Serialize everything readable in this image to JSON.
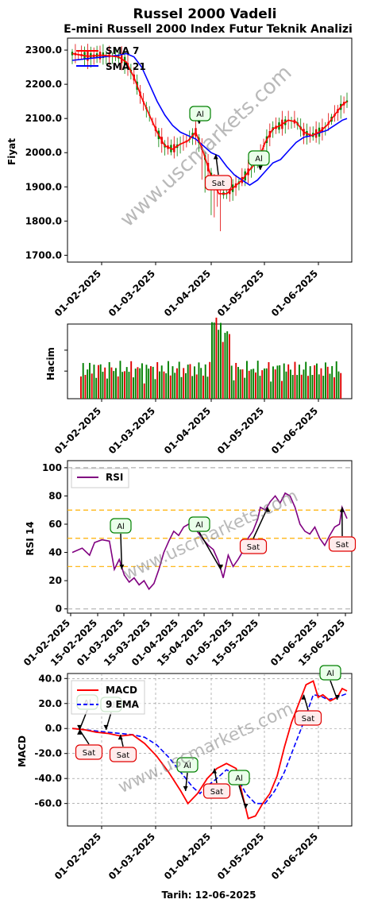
{
  "page": {
    "title": "Russel 2000 Vadeli",
    "subtitle": "E-mini Russell 2000 Index Futur Teknik Analizi",
    "watermark": "www.uscmarkets.com",
    "footer": "Tarih: 12-06-2025"
  },
  "colors": {
    "up": "#008000",
    "down": "#e00000",
    "sma7": "#ff0000",
    "sma21": "#0000ff",
    "rsi": "#800080",
    "macd": "#ff0000",
    "ema": "#0000ff",
    "buy_box": "#008000",
    "sell_box": "#e00000",
    "ref_line": "#ffb000",
    "grid": "#b0b0b0"
  },
  "chart_data": [
    {
      "id": "price",
      "type": "candlestick",
      "ylabel": "Fiyat",
      "ylim": [
        1680,
        2335
      ],
      "yticks": [
        "1700.0",
        "1800.0",
        "1900.0",
        "2000.0",
        "2100.0",
        "2200.0",
        "2300.0"
      ],
      "xticks": [
        "01-02-2025",
        "01-03-2025",
        "01-04-2025",
        "01-05-2025",
        "01-06-2025"
      ],
      "legend": [
        "SMA 7",
        "SMA 21"
      ],
      "series": [
        {
          "name": "SMA 7",
          "values": [
            [
              0,
              2290
            ],
            [
              10,
              2282
            ],
            [
              20,
              2285
            ],
            [
              30,
              2280
            ],
            [
              35,
              2265
            ],
            [
              40,
              2220
            ],
            [
              45,
              2160
            ],
            [
              50,
              2110
            ],
            [
              55,
              2060
            ],
            [
              60,
              2020
            ],
            [
              65,
              2010
            ],
            [
              70,
              2025
            ],
            [
              75,
              2035
            ],
            [
              80,
              2060
            ],
            [
              85,
              2000
            ],
            [
              90,
              1930
            ],
            [
              95,
              1880
            ],
            [
              100,
              1880
            ],
            [
              105,
              1900
            ],
            [
              110,
              1920
            ],
            [
              115,
              1950
            ],
            [
              120,
              1975
            ],
            [
              125,
              2030
            ],
            [
              130,
              2070
            ],
            [
              135,
              2080
            ],
            [
              140,
              2095
            ],
            [
              145,
              2090
            ],
            [
              150,
              2060
            ],
            [
              155,
              2050
            ],
            [
              160,
              2060
            ],
            [
              165,
              2080
            ],
            [
              170,
              2110
            ],
            [
              175,
              2140
            ],
            [
              178,
              2150
            ]
          ]
        },
        {
          "name": "SMA 21",
          "values": [
            [
              0,
              2270
            ],
            [
              10,
              2275
            ],
            [
              20,
              2280
            ],
            [
              30,
              2285
            ],
            [
              35,
              2290
            ],
            [
              40,
              2280
            ],
            [
              45,
              2250
            ],
            [
              50,
              2200
            ],
            [
              55,
              2150
            ],
            [
              60,
              2110
            ],
            [
              65,
              2080
            ],
            [
              70,
              2060
            ],
            [
              75,
              2050
            ],
            [
              80,
              2040
            ],
            [
              85,
              2020
            ],
            [
              90,
              2000
            ],
            [
              95,
              1990
            ],
            [
              100,
              1960
            ],
            [
              105,
              1935
            ],
            [
              110,
              1920
            ],
            [
              115,
              1905
            ],
            [
              120,
              1920
            ],
            [
              125,
              1945
            ],
            [
              130,
              1970
            ],
            [
              135,
              1980
            ],
            [
              140,
              2005
            ],
            [
              145,
              2030
            ],
            [
              150,
              2045
            ],
            [
              155,
              2050
            ],
            [
              160,
              2058
            ],
            [
              165,
              2065
            ],
            [
              170,
              2080
            ],
            [
              175,
              2095
            ],
            [
              178,
              2100
            ]
          ]
        }
      ],
      "signals": [
        {
          "label": "Al",
          "kind": "buy",
          "x": 82,
          "y": 2085
        },
        {
          "label": "Sat",
          "kind": "sell",
          "x": 93,
          "y": 1995
        },
        {
          "label": "Al",
          "kind": "buy",
          "x": 122,
          "y": 1950
        }
      ]
    },
    {
      "id": "volume",
      "type": "bar",
      "ylabel": "Hacim",
      "xticks": [
        "01-02-2025",
        "01-03-2025",
        "01-04-2025",
        "01-05-2025",
        "01-06-2025"
      ]
    },
    {
      "id": "rsi",
      "type": "line",
      "ylabel": "RSI 14",
      "ylim": [
        -3,
        105
      ],
      "yticks": [
        "0",
        "20",
        "40",
        "60",
        "80",
        "100"
      ],
      "reference_lines": [
        30,
        50,
        70
      ],
      "xticks": [
        "01-02-2025",
        "15-02-2025",
        "01-03-2025",
        "15-03-2025",
        "01-04-2025",
        "15-04-2025",
        "01-05-2025",
        "15-05-2025",
        "01-06-2025",
        "15-06-2025"
      ],
      "legend": [
        "RSI"
      ],
      "series": [
        {
          "name": "RSI",
          "values": [
            [
              0,
              40
            ],
            [
              4,
              43
            ],
            [
              7,
              38
            ],
            [
              9,
              47
            ],
            [
              12,
              49
            ],
            [
              15,
              48
            ],
            [
              17,
              28
            ],
            [
              19,
              35
            ],
            [
              21,
              24
            ],
            [
              23,
              19
            ],
            [
              25,
              22
            ],
            [
              27,
              17
            ],
            [
              29,
              20
            ],
            [
              31,
              14
            ],
            [
              33,
              18
            ],
            [
              35,
              28
            ],
            [
              37,
              40
            ],
            [
              39,
              48
            ],
            [
              41,
              55
            ],
            [
              43,
              52
            ],
            [
              45,
              58
            ],
            [
              47,
              60
            ],
            [
              50,
              56
            ],
            [
              53,
              49
            ],
            [
              55,
              45
            ],
            [
              57,
              42
            ],
            [
              59,
              34
            ],
            [
              61,
              22
            ],
            [
              63,
              38
            ],
            [
              65,
              30
            ],
            [
              67,
              35
            ],
            [
              69,
              41
            ],
            [
              71,
              50
            ],
            [
              73,
              55
            ],
            [
              75,
              64
            ],
            [
              76,
              72
            ],
            [
              78,
              70
            ],
            [
              80,
              76
            ],
            [
              82,
              80
            ],
            [
              84,
              75
            ],
            [
              86,
              82
            ],
            [
              88,
              80
            ],
            [
              90,
              72
            ],
            [
              92,
              60
            ],
            [
              94,
              55
            ],
            [
              96,
              53
            ],
            [
              98,
              58
            ],
            [
              100,
              50
            ],
            [
              102,
              45
            ],
            [
              104,
              52
            ],
            [
              106,
              58
            ],
            [
              108,
              60
            ],
            [
              109,
              72
            ],
            [
              111,
              64
            ]
          ]
        }
      ],
      "signals": [
        {
          "label": "Al",
          "kind": "buy",
          "x": 20,
          "y": 28
        },
        {
          "label": "Al",
          "kind": "buy",
          "x": 60,
          "y": 28
        },
        {
          "label": "Sat",
          "kind": "sell",
          "x": 79,
          "y": 72
        },
        {
          "label": "Sat",
          "kind": "sell",
          "x": 109,
          "y": 72
        }
      ]
    },
    {
      "id": "macd",
      "type": "line",
      "ylabel": "MACD",
      "ylim": [
        -78,
        44
      ],
      "yticks": [
        "-60.0",
        "-40.0",
        "-20.0",
        "0.0",
        "20.0",
        "40.0"
      ],
      "xticks": [
        "01-02-2025",
        "01-03-2025",
        "01-04-2025",
        "01-05-2025",
        "01-06-2025"
      ],
      "legend": [
        "MACD",
        "9 EMA"
      ],
      "series": [
        {
          "name": "MACD",
          "values": [
            [
              0,
              0
            ],
            [
              5,
              -1
            ],
            [
              10,
              -3
            ],
            [
              15,
              -4
            ],
            [
              20,
              -6
            ],
            [
              25,
              -5
            ],
            [
              30,
              -12
            ],
            [
              35,
              -22
            ],
            [
              40,
              -35
            ],
            [
              45,
              -50
            ],
            [
              48,
              -60
            ],
            [
              52,
              -52
            ],
            [
              56,
              -40
            ],
            [
              60,
              -32
            ],
            [
              64,
              -28
            ],
            [
              68,
              -32
            ],
            [
              70,
              -48
            ],
            [
              73,
              -72
            ],
            [
              76,
              -70
            ],
            [
              79,
              -60
            ],
            [
              82,
              -52
            ],
            [
              85,
              -38
            ],
            [
              88,
              -15
            ],
            [
              91,
              5
            ],
            [
              94,
              20
            ],
            [
              97,
              35
            ],
            [
              100,
              38
            ],
            [
              102,
              25
            ],
            [
              104,
              27
            ],
            [
              107,
              22
            ],
            [
              110,
              25
            ],
            [
              112,
              32
            ],
            [
              114,
              30
            ]
          ]
        },
        {
          "name": "9 EMA",
          "values": [
            [
              0,
              0
            ],
            [
              5,
              -1
            ],
            [
              10,
              -2
            ],
            [
              15,
              -3
            ],
            [
              20,
              -4
            ],
            [
              25,
              -5
            ],
            [
              30,
              -7
            ],
            [
              35,
              -13
            ],
            [
              40,
              -23
            ],
            [
              45,
              -35
            ],
            [
              50,
              -47
            ],
            [
              53,
              -52
            ],
            [
              56,
              -46
            ],
            [
              60,
              -40
            ],
            [
              64,
              -33
            ],
            [
              68,
              -37
            ],
            [
              72,
              -52
            ],
            [
              76,
              -60
            ],
            [
              80,
              -60
            ],
            [
              84,
              -50
            ],
            [
              88,
              -35
            ],
            [
              92,
              -15
            ],
            [
              96,
              5
            ],
            [
              100,
              27
            ],
            [
              103,
              26
            ],
            [
              106,
              23
            ],
            [
              110,
              25
            ],
            [
              114,
              28
            ]
          ]
        }
      ],
      "signals": [
        {
          "label": "Al",
          "kind": "buy",
          "x": 3,
          "y": -1
        },
        {
          "label": "Sat",
          "kind": "sell",
          "x": 3,
          "y": -1
        },
        {
          "label": "Al",
          "kind": "buy",
          "x": 14,
          "y": -1
        },
        {
          "label": "Sat",
          "kind": "sell",
          "x": 20,
          "y": -5
        },
        {
          "label": "Al",
          "kind": "buy",
          "x": 47,
          "y": -50
        },
        {
          "label": "Sat",
          "kind": "sell",
          "x": 59,
          "y": -32
        },
        {
          "label": "Al",
          "kind": "buy",
          "x": 72,
          "y": -64
        },
        {
          "label": "Sat",
          "kind": "sell",
          "x": 96,
          "y": 27
        },
        {
          "label": "Al",
          "kind": "buy",
          "x": 110,
          "y": 23
        }
      ]
    }
  ]
}
